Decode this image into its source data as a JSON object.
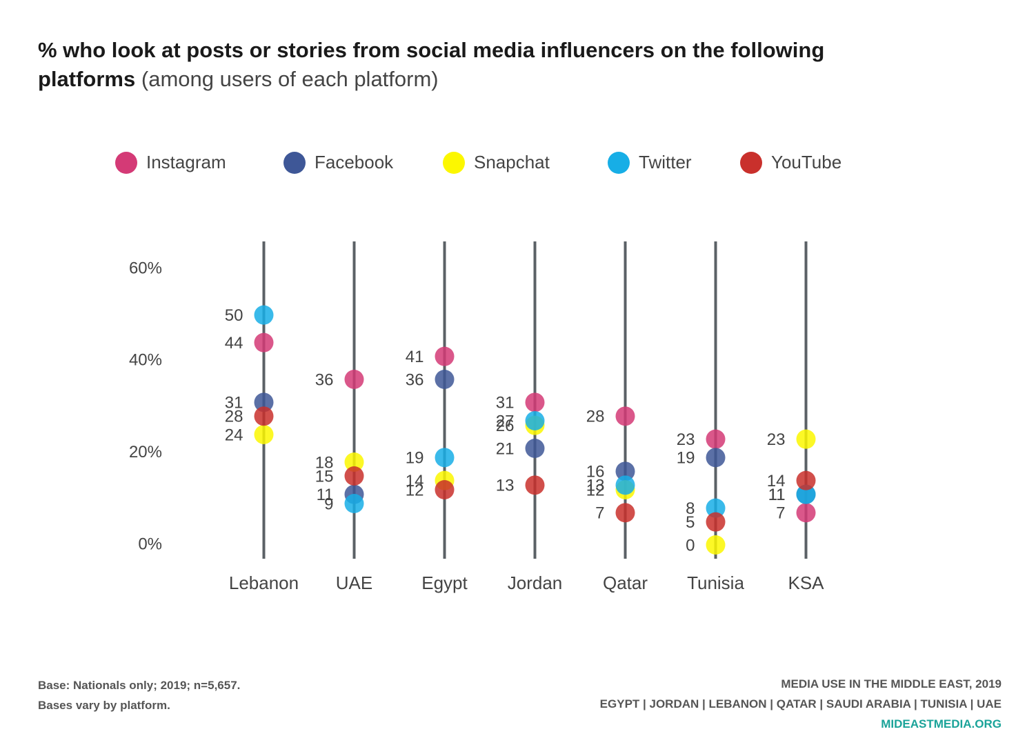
{
  "chart_data": {
    "type": "dot",
    "title": "% who look at posts or stories from social media influencers on the following platforms",
    "subtitle": "(among users of each platform)",
    "categories": [
      "Lebanon",
      "UAE",
      "Egypt",
      "Jordan",
      "Qatar",
      "Tunisia",
      "KSA"
    ],
    "series": [
      {
        "name": "Instagram",
        "color": "#d43a76",
        "values": [
          44,
          36,
          41,
          31,
          28,
          23,
          7
        ]
      },
      {
        "name": "Facebook",
        "color": "#3e5797",
        "values": [
          31,
          11,
          36,
          21,
          16,
          19,
          11
        ]
      },
      {
        "name": "Snapchat",
        "color": "#fcf700",
        "values": [
          24,
          18,
          14,
          26,
          12,
          0,
          23
        ]
      },
      {
        "name": "Twitter",
        "color": "#17aee6",
        "values": [
          50,
          9,
          19,
          27,
          13,
          8,
          11
        ]
      },
      {
        "name": "YouTube",
        "color": "#c9302c",
        "values": [
          28,
          15,
          12,
          13,
          7,
          5,
          14
        ]
      }
    ],
    "ylim": [
      -3,
      66
    ],
    "yticks": [
      {
        "value": 0,
        "label": "0%"
      },
      {
        "value": 20,
        "label": "20%"
      },
      {
        "value": 40,
        "label": "40%"
      },
      {
        "value": 60,
        "label": "60%"
      }
    ],
    "legend": "top",
    "notes": [
      "Base: Nationals only; 2019; n=5,657.",
      "Bases vary by platform."
    ],
    "source": [
      "MEDIA USE IN THE MIDDLE EAST, 2019",
      "EGYPT | JORDAN | LEBANON | QATAR | SAUDI ARABIA | TUNISIA | UAE",
      "MIDEASTMEDIA.ORG"
    ]
  }
}
